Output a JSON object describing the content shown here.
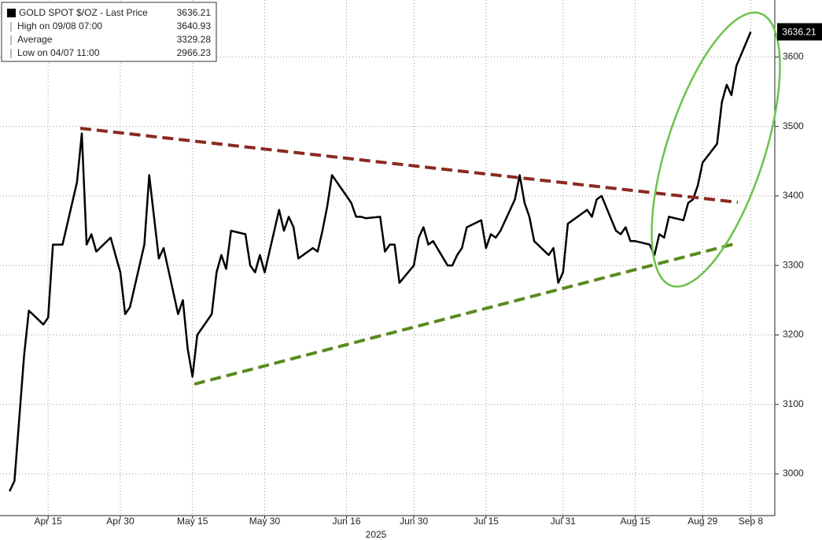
{
  "chart_data": {
    "type": "line",
    "xlabel": "2025",
    "legend": [
      {
        "label": "GOLD SPOT $/OZ - Last Price",
        "value": 3636.21
      },
      {
        "label": "High on 09/08 07:00",
        "value": 3640.93
      },
      {
        "label": "Average",
        "value": 3329.28
      },
      {
        "label": "Low on 04/07 11:00",
        "value": 2966.23
      }
    ],
    "x": [
      "2025-04-07",
      "2025-04-08",
      "2025-04-09",
      "2025-04-10",
      "2025-04-11",
      "2025-04-14",
      "2025-04-15",
      "2025-04-16",
      "2025-04-17",
      "2025-04-18",
      "2025-04-21",
      "2025-04-22",
      "2025-04-23",
      "2025-04-24",
      "2025-04-25",
      "2025-04-28",
      "2025-04-29",
      "2025-04-30",
      "2025-05-01",
      "2025-05-02",
      "2025-05-05",
      "2025-05-06",
      "2025-05-07",
      "2025-05-08",
      "2025-05-09",
      "2025-05-12",
      "2025-05-13",
      "2025-05-14",
      "2025-05-15",
      "2025-05-16",
      "2025-05-19",
      "2025-05-20",
      "2025-05-21",
      "2025-05-22",
      "2025-05-23",
      "2025-05-26",
      "2025-05-27",
      "2025-05-28",
      "2025-05-29",
      "2025-05-30",
      "2025-06-02",
      "2025-06-03",
      "2025-06-04",
      "2025-06-05",
      "2025-06-06",
      "2025-06-09",
      "2025-06-10",
      "2025-06-11",
      "2025-06-12",
      "2025-06-13",
      "2025-06-16",
      "2025-06-17",
      "2025-06-18",
      "2025-06-19",
      "2025-06-20",
      "2025-06-23",
      "2025-06-24",
      "2025-06-25",
      "2025-06-26",
      "2025-06-27",
      "2025-06-30",
      "2025-07-01",
      "2025-07-02",
      "2025-07-03",
      "2025-07-04",
      "2025-07-07",
      "2025-07-08",
      "2025-07-09",
      "2025-07-10",
      "2025-07-11",
      "2025-07-14",
      "2025-07-15",
      "2025-07-16",
      "2025-07-17",
      "2025-07-18",
      "2025-07-21",
      "2025-07-22",
      "2025-07-23",
      "2025-07-24",
      "2025-07-25",
      "2025-07-28",
      "2025-07-29",
      "2025-07-30",
      "2025-07-31",
      "2025-08-01",
      "2025-08-04",
      "2025-08-05",
      "2025-08-06",
      "2025-08-07",
      "2025-08-08",
      "2025-08-11",
      "2025-08-12",
      "2025-08-13",
      "2025-08-14",
      "2025-08-15",
      "2025-08-18",
      "2025-08-19",
      "2025-08-20",
      "2025-08-21",
      "2025-08-22",
      "2025-08-25",
      "2025-08-26",
      "2025-08-27",
      "2025-08-28",
      "2025-08-29",
      "2025-09-01",
      "2025-09-02",
      "2025-09-03",
      "2025-09-04",
      "2025-09-05",
      "2025-09-08"
    ],
    "series": [
      {
        "name": "GOLD SPOT $/OZ",
        "color": "#000000",
        "values": [
          2975,
          2990,
          3080,
          3170,
          3235,
          3215,
          3225,
          3330,
          3330,
          3330,
          3420,
          3490,
          3330,
          3345,
          3320,
          3340,
          3315,
          3290,
          3230,
          3240,
          3330,
          3430,
          3370,
          3310,
          3325,
          3230,
          3250,
          3180,
          3140,
          3200,
          3230,
          3290,
          3315,
          3295,
          3350,
          3345,
          3300,
          3290,
          3315,
          3290,
          3380,
          3350,
          3370,
          3355,
          3310,
          3325,
          3320,
          3350,
          3385,
          3430,
          3400,
          3390,
          3370,
          3370,
          3368,
          3370,
          3320,
          3330,
          3330,
          3275,
          3300,
          3340,
          3355,
          3330,
          3335,
          3300,
          3300,
          3315,
          3325,
          3355,
          3365,
          3325,
          3345,
          3340,
          3350,
          3395,
          3430,
          3390,
          3370,
          3335,
          3315,
          3325,
          3275,
          3290,
          3360,
          3375,
          3380,
          3370,
          3395,
          3400,
          3350,
          3345,
          3355,
          3335,
          3335,
          3330,
          3315,
          3345,
          3340,
          3370,
          3365,
          3390,
          3395,
          3415,
          3448,
          3475,
          3535,
          3560,
          3545,
          3587,
          3636.21
        ]
      }
    ],
    "xlim": [
      "2025-04-05",
      "2025-09-13"
    ],
    "xticks": [
      {
        "value": "2025-04-15",
        "label": "Apr 15"
      },
      {
        "value": "2025-04-30",
        "label": "Apr 30"
      },
      {
        "value": "2025-05-15",
        "label": "May 15"
      },
      {
        "value": "2025-05-30",
        "label": "May 30"
      },
      {
        "value": "2025-06-16",
        "label": "Jun 16"
      },
      {
        "value": "2025-06-30",
        "label": "Jun 30"
      },
      {
        "value": "2025-07-15",
        "label": "Jul 15"
      },
      {
        "value": "2025-07-31",
        "label": "Jul 31"
      },
      {
        "value": "2025-08-15",
        "label": "Aug 15"
      },
      {
        "value": "2025-08-29",
        "label": "Aug 29"
      },
      {
        "value": "2025-09-08",
        "label": "Sep 8"
      }
    ],
    "ylim": [
      2940,
      3682
    ],
    "yticks": [
      3000,
      3100,
      3200,
      3300,
      3400,
      3500,
      3600
    ],
    "grid": true
  }
}
